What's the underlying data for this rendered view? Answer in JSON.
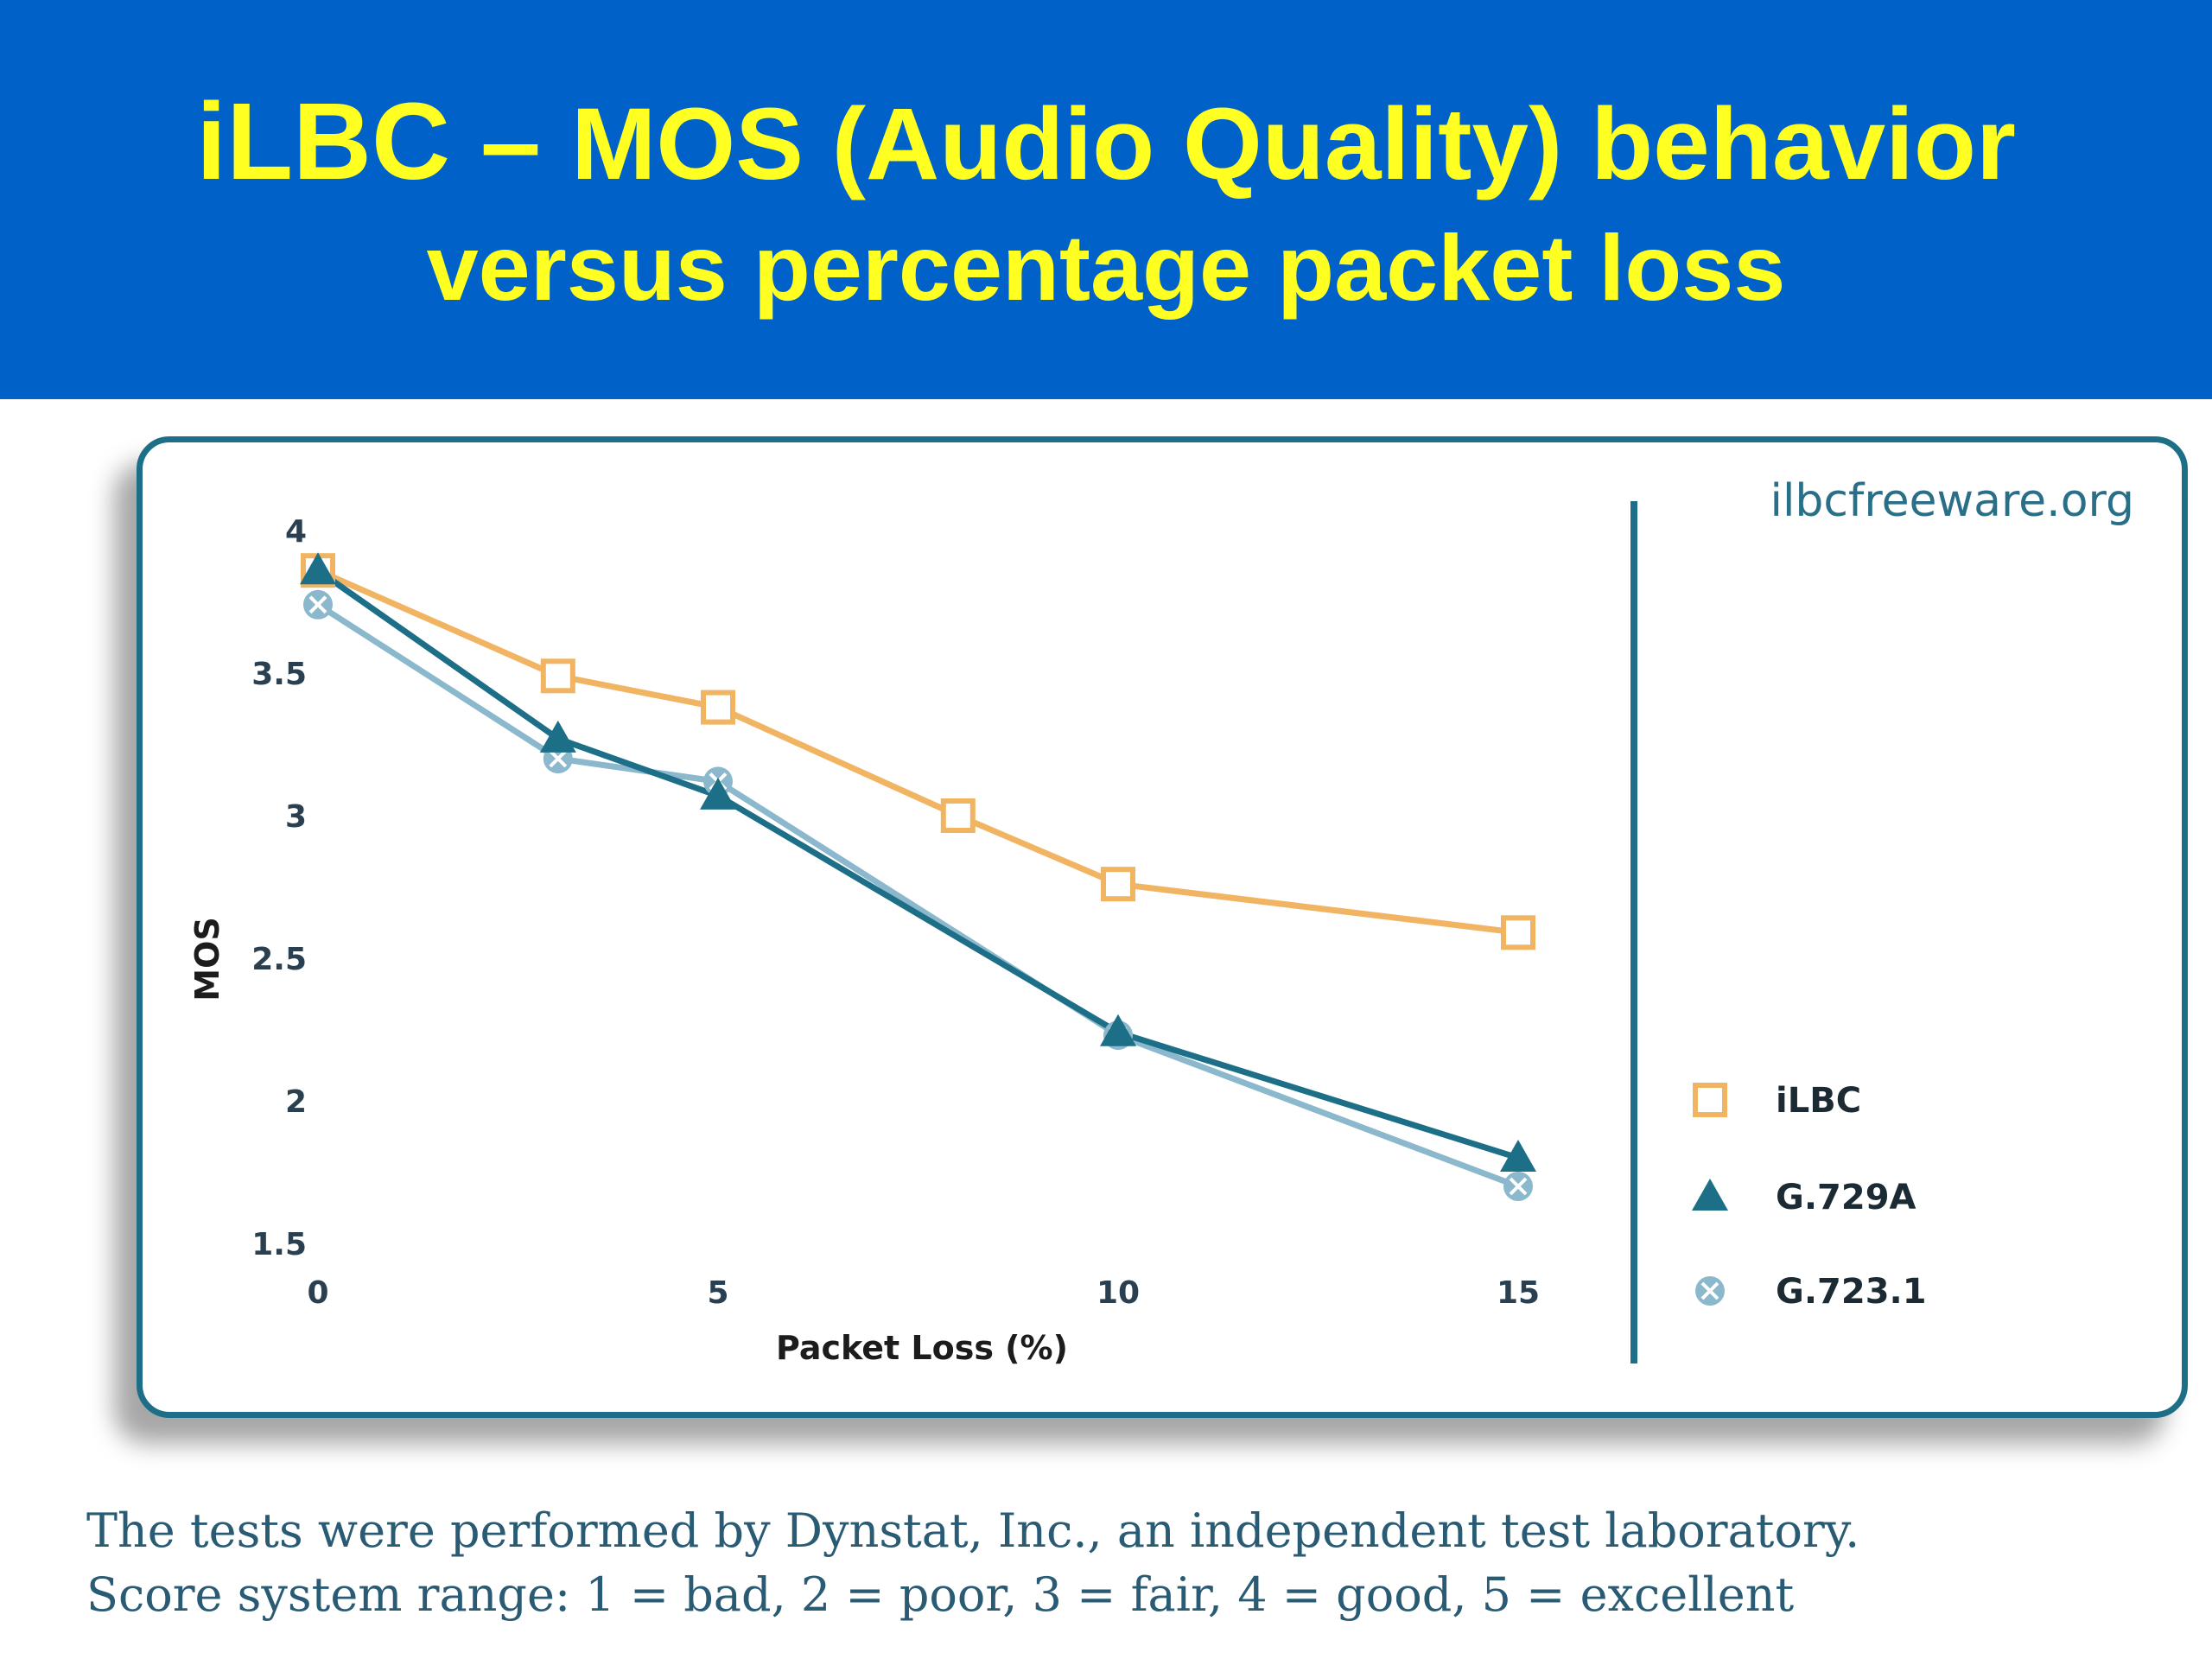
{
  "header": {
    "title_part1": "iLBC – ",
    "title_part2": "MOS (Audio Quality) behavior",
    "title_line2": "versus percentage packet loss"
  },
  "colors": {
    "header_bg": "#0062c8",
    "title": "#ffff22",
    "ilbc": "#f0b462",
    "g729a": "#1d6f88",
    "g7231": "#8bb8cc"
  },
  "chart_data": {
    "type": "line",
    "watermark": "ilbcfreeware.org",
    "xlabel": "Packet Loss (%)",
    "ylabel": "MOS",
    "xticks": [
      "0",
      "5",
      "10",
      "15"
    ],
    "yticks": [
      "1.5",
      "2",
      "2.5",
      "3",
      "3.5",
      "4"
    ],
    "xlim": [
      0,
      15
    ],
    "ylim": [
      1.5,
      4
    ],
    "series": [
      {
        "name": "iLBC",
        "marker": "square",
        "x": [
          0,
          3,
          5,
          8,
          10,
          15
        ],
        "y": [
          3.86,
          3.49,
          3.38,
          3.0,
          2.76,
          2.59
        ]
      },
      {
        "name": "G.729A",
        "marker": "triangle",
        "x": [
          0,
          3,
          5,
          10,
          15
        ],
        "y": [
          3.86,
          3.27,
          3.07,
          2.24,
          1.8
        ]
      },
      {
        "name": "G.723.1",
        "marker": "cross",
        "x": [
          0,
          3,
          5,
          10,
          15
        ],
        "y": [
          3.74,
          3.2,
          3.12,
          2.23,
          1.7
        ]
      }
    ]
  },
  "caption": {
    "line1": "The tests were performed by Dynstat, Inc., an independent test laboratory.",
    "line2": "Score system range: 1 = bad, 2 = poor, 3 = fair, 4 = good, 5 = excellent"
  }
}
